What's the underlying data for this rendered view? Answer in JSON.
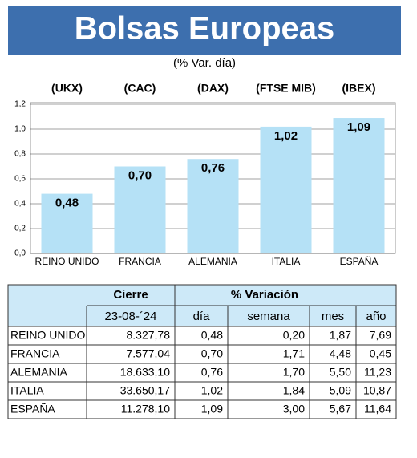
{
  "chart_data": {
    "type": "bar",
    "title": "Bolsas Europeas",
    "subtitle": "(% Var. día)",
    "indices": [
      "(UKX)",
      "(CAC)",
      "(DAX)",
      "(FTSE MIB)",
      "(IBEX)"
    ],
    "categories": [
      "REINO UNIDO",
      "FRANCIA",
      "ALEMANIA",
      "ITALIA",
      "ESPAÑA"
    ],
    "values": [
      0.48,
      0.7,
      0.76,
      1.02,
      1.09
    ],
    "value_labels": [
      "0,48",
      "0,70",
      "0,76",
      "1,02",
      "1,09"
    ],
    "color": "#b5e1f6",
    "ylim": [
      0,
      1.2
    ],
    "yticks": [
      {
        "value": 0,
        "label": "0,0"
      },
      {
        "value": 0.2,
        "label": "0,2"
      },
      {
        "value": 0.4,
        "label": "0,4"
      },
      {
        "value": 0.6,
        "label": "0,6"
      },
      {
        "value": 0.8,
        "label": "0,8"
      },
      {
        "value": 1.0,
        "label": "1,0"
      },
      {
        "value": 1.2,
        "label": "1,2"
      }
    ],
    "grid": true
  },
  "table": {
    "header": [
      "Cierre",
      "% Variación"
    ],
    "subheader": [
      "23-08-´24",
      "día",
      "semana",
      "mes",
      "año"
    ],
    "rows": [
      [
        "REINO UNIDO",
        "8.327,78",
        "0,48",
        "0,20",
        "1,87",
        "7,69"
      ],
      [
        "FRANCIA",
        "7.577,04",
        "0,70",
        "1,71",
        "4,48",
        "0,45"
      ],
      [
        "ALEMANIA",
        "18.633,10",
        "0,76",
        "1,70",
        "5,50",
        "11,23"
      ],
      [
        "ITALIA",
        "33.650,17",
        "1,02",
        "1,84",
        "5,09",
        "10,87"
      ],
      [
        "ESPAÑA",
        "11.278,10",
        "1,09",
        "3,00",
        "5,67",
        "11,64"
      ]
    ]
  }
}
